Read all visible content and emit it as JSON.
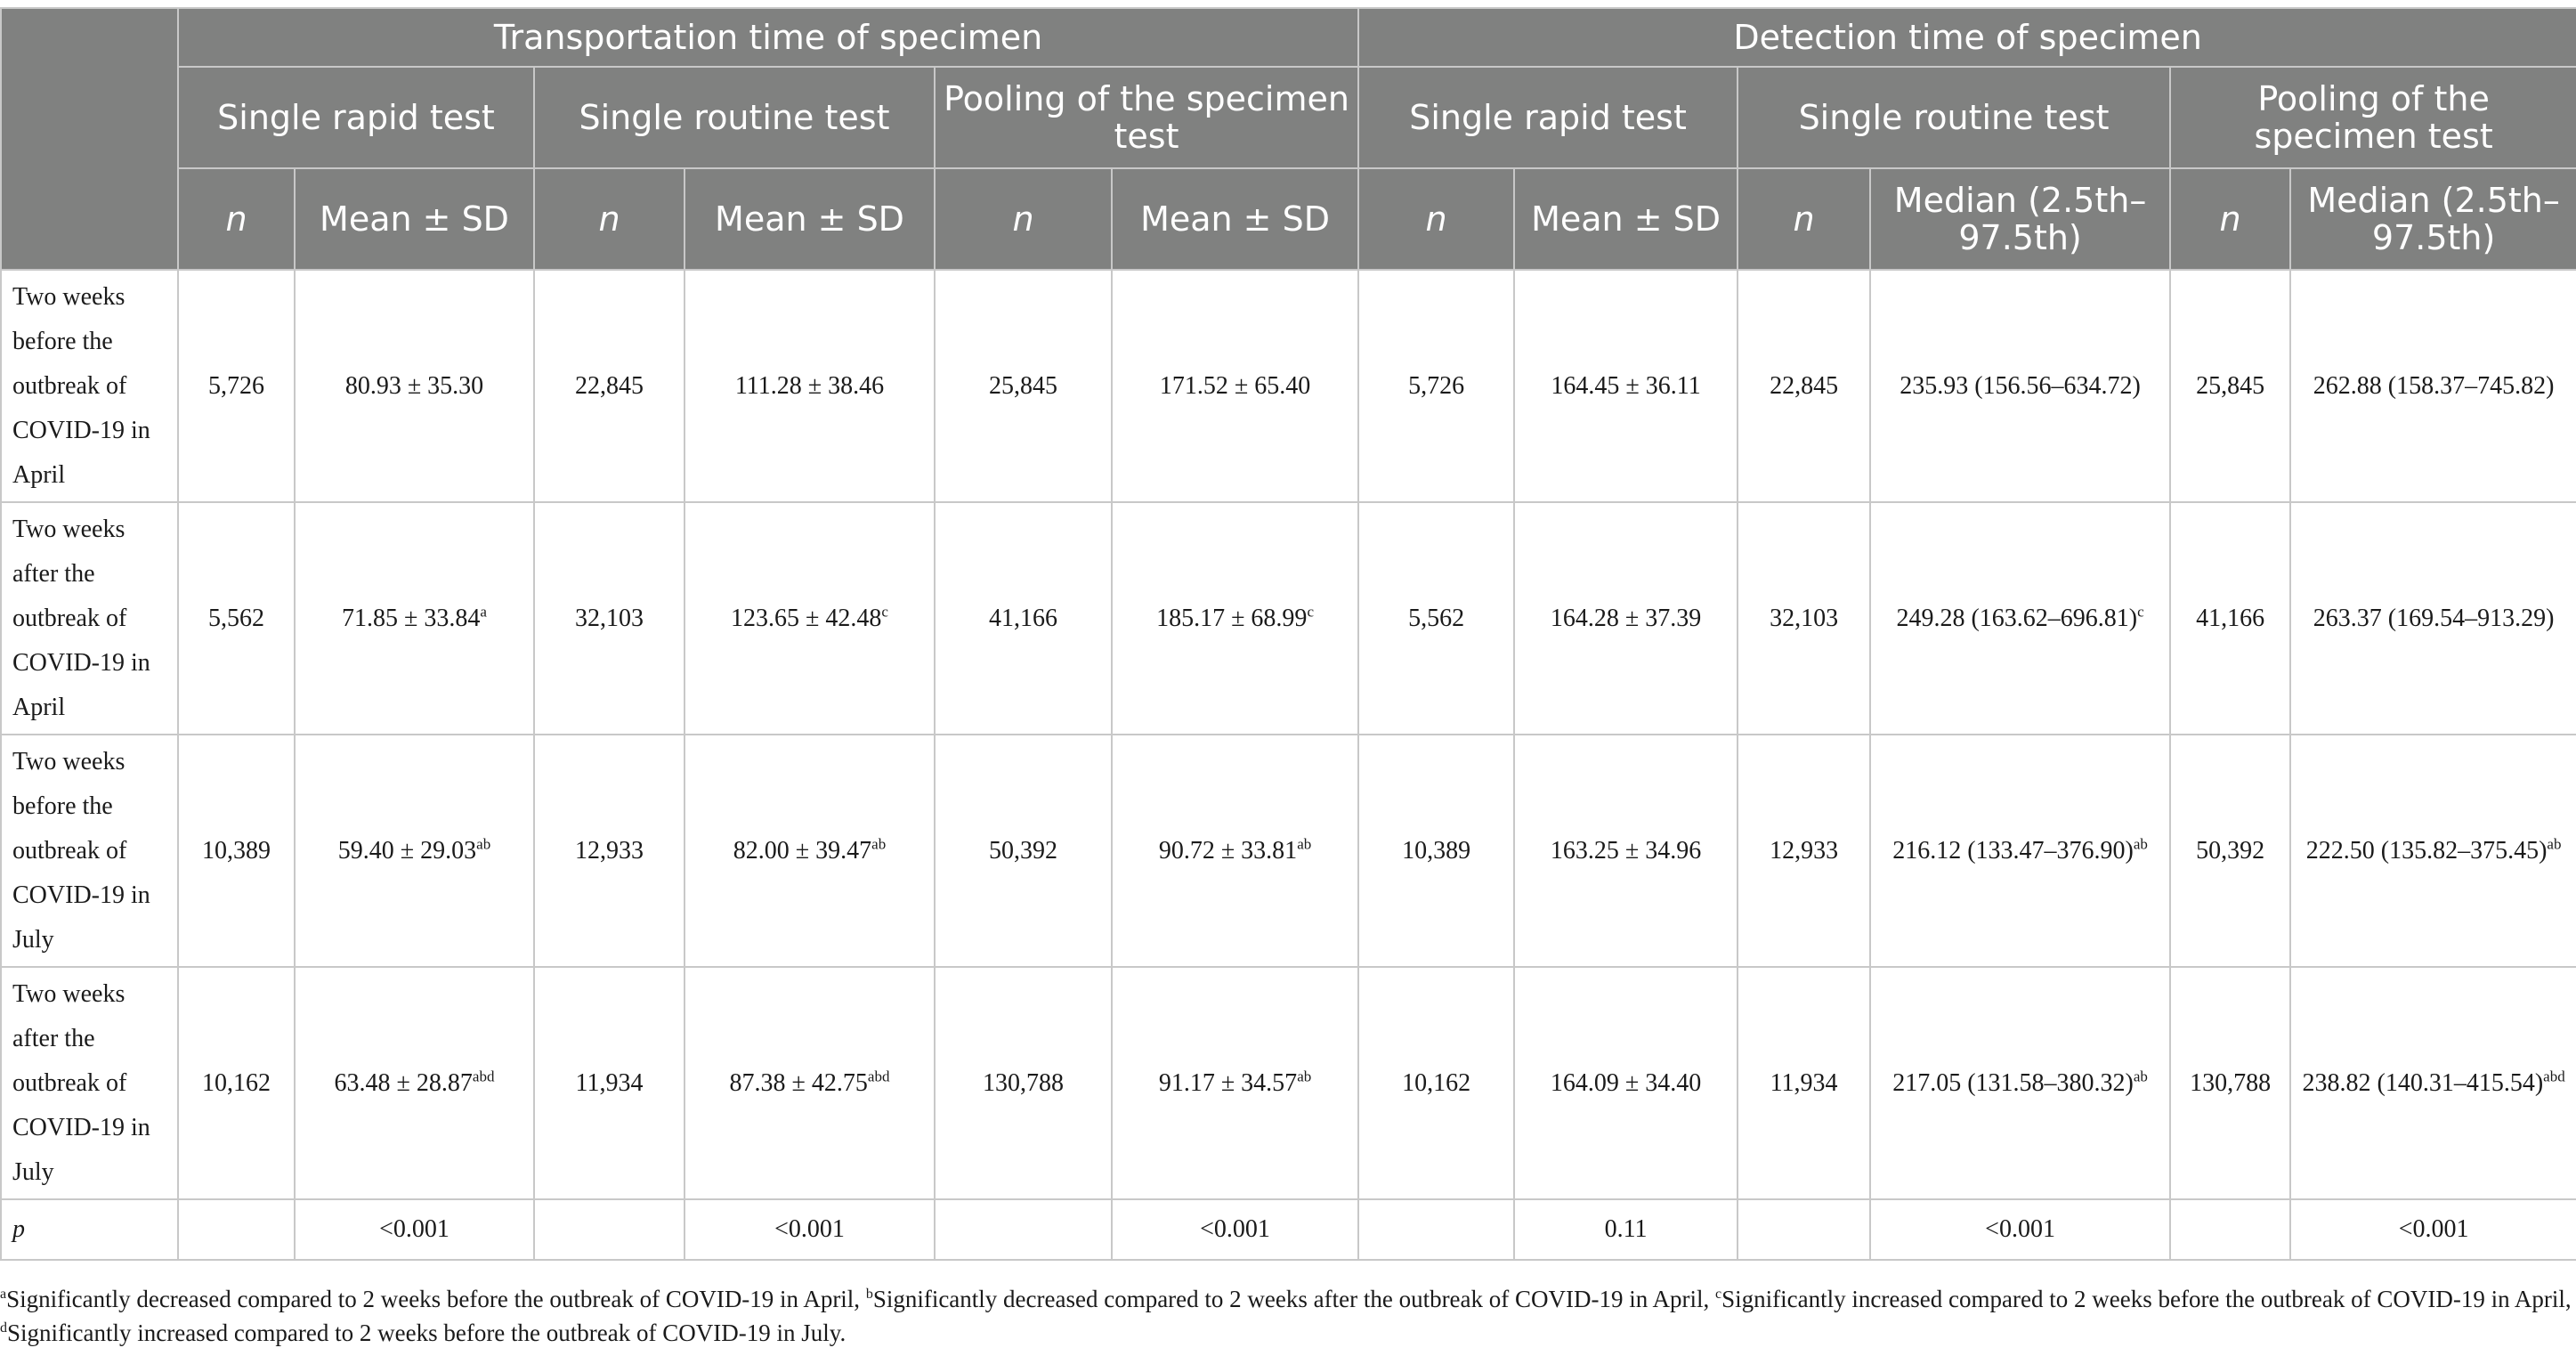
{
  "header": {
    "group_transport": "Transportation time of specimen",
    "group_detection": "Detection time of specimen",
    "tests": [
      "Single rapid test",
      "Single routine test",
      "Pooling of the specimen test",
      "Single rapid test",
      "Single routine test",
      "Pooling of the specimen test"
    ],
    "sub": [
      "n",
      "Mean ± SD",
      "n",
      "Mean ± SD",
      "n",
      "Mean ± SD",
      "n",
      "Mean ± SD",
      "n",
      "Median (2.5th–97.5th)",
      "n",
      "Median (2.5th–97.5th)"
    ]
  },
  "rows": [
    {
      "label": "Two weeks before the outbreak of COVID-19 in April",
      "cells": [
        {
          "v": "5,726",
          "s": ""
        },
        {
          "v": "80.93 ± 35.30",
          "s": ""
        },
        {
          "v": "22,845",
          "s": ""
        },
        {
          "v": "111.28 ± 38.46",
          "s": ""
        },
        {
          "v": "25,845",
          "s": ""
        },
        {
          "v": "171.52 ± 65.40",
          "s": ""
        },
        {
          "v": "5,726",
          "s": ""
        },
        {
          "v": "164.45 ± 36.11",
          "s": ""
        },
        {
          "v": "22,845",
          "s": ""
        },
        {
          "v": "235.93 (156.56–634.72)",
          "s": ""
        },
        {
          "v": "25,845",
          "s": ""
        },
        {
          "v": "262.88 (158.37–745.82)",
          "s": ""
        }
      ]
    },
    {
      "label": "Two weeks after the outbreak of COVID-19 in April",
      "cells": [
        {
          "v": "5,562",
          "s": ""
        },
        {
          "v": "71.85 ± 33.84",
          "s": "a"
        },
        {
          "v": "32,103",
          "s": ""
        },
        {
          "v": "123.65 ± 42.48",
          "s": "c"
        },
        {
          "v": "41,166",
          "s": ""
        },
        {
          "v": "185.17 ± 68.99",
          "s": "c"
        },
        {
          "v": "5,562",
          "s": ""
        },
        {
          "v": "164.28 ± 37.39",
          "s": ""
        },
        {
          "v": "32,103",
          "s": ""
        },
        {
          "v": "249.28 (163.62–696.81)",
          "s": "c"
        },
        {
          "v": "41,166",
          "s": ""
        },
        {
          "v": "263.37 (169.54–913.29)",
          "s": ""
        }
      ]
    },
    {
      "label": "Two weeks before the outbreak of COVID-19 in July",
      "cells": [
        {
          "v": "10,389",
          "s": ""
        },
        {
          "v": "59.40 ± 29.03",
          "s": "ab"
        },
        {
          "v": "12,933",
          "s": ""
        },
        {
          "v": "82.00 ± 39.47",
          "s": "ab"
        },
        {
          "v": "50,392",
          "s": ""
        },
        {
          "v": "90.72 ± 33.81",
          "s": "ab"
        },
        {
          "v": "10,389",
          "s": ""
        },
        {
          "v": "163.25 ± 34.96",
          "s": ""
        },
        {
          "v": "12,933",
          "s": ""
        },
        {
          "v": "216.12 (133.47–376.90)",
          "s": "ab"
        },
        {
          "v": "50,392",
          "s": ""
        },
        {
          "v": "222.50 (135.82–375.45)",
          "s": "ab"
        }
      ]
    },
    {
      "label": "Two weeks after the outbreak of COVID-19 in July",
      "cells": [
        {
          "v": "10,162",
          "s": ""
        },
        {
          "v": "63.48 ± 28.87",
          "s": "abd"
        },
        {
          "v": "11,934",
          "s": ""
        },
        {
          "v": "87.38 ± 42.75",
          "s": "abd"
        },
        {
          "v": "130,788",
          "s": ""
        },
        {
          "v": "91.17 ± 34.57",
          "s": "ab"
        },
        {
          "v": "10,162",
          "s": ""
        },
        {
          "v": "164.09 ± 34.40",
          "s": ""
        },
        {
          "v": "11,934",
          "s": ""
        },
        {
          "v": "217.05 (131.58–380.32)",
          "s": "ab"
        },
        {
          "v": "130,788",
          "s": ""
        },
        {
          "v": "238.82 (140.31–415.54)",
          "s": "abd"
        }
      ]
    }
  ],
  "p_row": {
    "label": "p",
    "values": [
      "",
      "<0.001",
      "",
      "<0.001",
      "",
      "<0.001",
      "",
      "0.11",
      "",
      "<0.001",
      "",
      "<0.001"
    ]
  },
  "footnote": {
    "a": "Significantly decreased compared to 2 weeks before the outbreak of COVID-19 in April, ",
    "b": "Significantly decreased compared to 2 weeks after the outbreak of COVID-19 in April, ",
    "c": "Significantly increased compared to 2 weeks before the outbreak of COVID-19 in April, ",
    "d": "Significantly increased compared to 2 weeks before the outbreak of COVID-19 in July."
  }
}
